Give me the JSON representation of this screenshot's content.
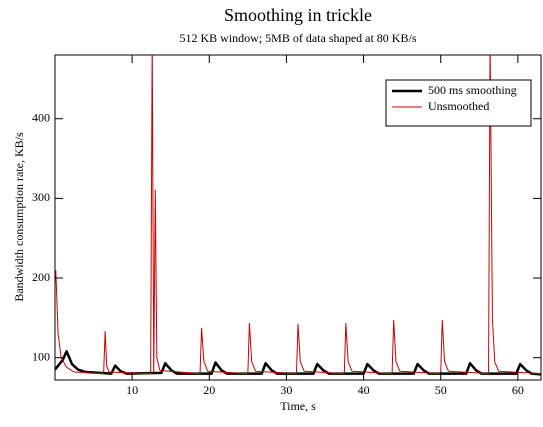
{
  "chart_data": {
    "type": "line",
    "title": "Smoothing in trickle",
    "subtitle": "512 KB window; 5MB of data shaped at 80 KB/s",
    "x_label": "Time, s",
    "y_label": "Bandwidth consumption rate, KB/s",
    "xlim": [
      0,
      63
    ],
    "ylim": [
      72,
      480
    ],
    "xticks": [
      10,
      20,
      30,
      40,
      50,
      60
    ],
    "yticks": [
      100,
      200,
      300,
      400
    ],
    "grid": false,
    "legend": "upper right",
    "series": [
      {
        "name": "500 ms smoothing",
        "color": "#000000",
        "width": 2.5,
        "x": [
          0,
          1,
          1.5,
          2.2,
          3,
          4,
          7.3,
          7.8,
          8.5,
          9.3,
          13.8,
          14.3,
          15.1,
          15.8,
          20.3,
          20.8,
          21.6,
          22.3,
          26.8,
          27.3,
          28.1,
          28.8,
          33.5,
          34,
          34.8,
          35.5,
          40,
          40.5,
          41.3,
          42,
          46.5,
          47,
          47.8,
          48.5,
          53.3,
          53.8,
          54.6,
          55.3,
          59.8,
          60.3,
          61.1,
          61.8,
          63
        ],
        "values": [
          85,
          97,
          108,
          92,
          85,
          82,
          80,
          90,
          83,
          80,
          81,
          93,
          84,
          80,
          80,
          94,
          84,
          80,
          80,
          93,
          84,
          80,
          80,
          92,
          84,
          80,
          80,
          92,
          84,
          80,
          80,
          92,
          84,
          80,
          80,
          93,
          84,
          80,
          80,
          92,
          84,
          80,
          79
        ]
      },
      {
        "name": "Unsmoothed",
        "color": "#cc0000",
        "width": 1,
        "x": [
          0.1,
          0.4,
          0.8,
          1.5,
          2.5,
          6.3,
          6.5,
          6.7,
          7,
          12.4,
          12.6,
          12.8,
          13,
          13.2,
          13.6,
          18.8,
          19,
          19.3,
          19.8,
          25,
          25.2,
          25.5,
          26,
          31.3,
          31.5,
          31.8,
          32.3,
          37.5,
          37.7,
          38,
          38.5,
          43.7,
          43.9,
          44.2,
          44.7,
          50,
          50.2,
          50.5,
          51,
          56.2,
          56.4,
          56.7,
          57,
          57.5,
          63
        ],
        "values": [
          210,
          130,
          100,
          88,
          82,
          80,
          133,
          90,
          82,
          80,
          500,
          82,
          310,
          100,
          84,
          80,
          137,
          95,
          83,
          80,
          143,
          95,
          83,
          80,
          142,
          95,
          83,
          80,
          143,
          95,
          83,
          80,
          147,
          95,
          83,
          80,
          147,
          95,
          83,
          80,
          500,
          150,
          95,
          83,
          80
        ]
      }
    ]
  }
}
